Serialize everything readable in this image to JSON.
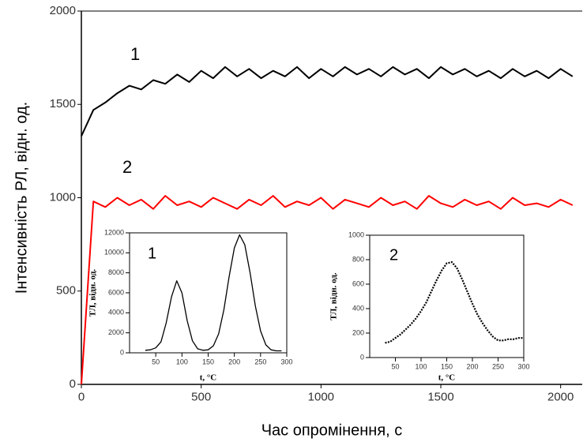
{
  "chart_data": [
    {
      "type": "line",
      "xlabel": "Час опромінення, с",
      "ylabel": "Інтенсивність РЛ, відн. од.",
      "xlim": [
        0,
        2090
      ],
      "ylim": [
        0,
        2000
      ],
      "xticks": [
        0,
        500,
        1000,
        1500,
        2000
      ],
      "yticks": [
        0,
        500,
        1000,
        1500,
        2000
      ],
      "x": [
        0,
        50,
        100,
        150,
        200,
        250,
        300,
        350,
        400,
        450,
        500,
        550,
        600,
        650,
        700,
        750,
        800,
        850,
        900,
        950,
        1000,
        1050,
        1100,
        1150,
        1200,
        1250,
        1300,
        1350,
        1400,
        1450,
        1500,
        1550,
        1600,
        1650,
        1700,
        1750,
        1800,
        1850,
        1900,
        1950,
        2000,
        2050
      ],
      "series": [
        {
          "name": "1",
          "color": "#000000",
          "values": [
            1330,
            1470,
            1510,
            1560,
            1600,
            1580,
            1630,
            1610,
            1660,
            1620,
            1680,
            1640,
            1700,
            1650,
            1690,
            1640,
            1680,
            1650,
            1700,
            1640,
            1690,
            1650,
            1700,
            1660,
            1690,
            1650,
            1700,
            1660,
            1690,
            1640,
            1700,
            1660,
            1690,
            1650,
            1680,
            1640,
            1690,
            1650,
            1680,
            1640,
            1690,
            1650
          ]
        },
        {
          "name": "2",
          "color": "#ff0000",
          "values": [
            0,
            980,
            950,
            1000,
            960,
            990,
            940,
            1010,
            960,
            980,
            950,
            1000,
            970,
            940,
            990,
            960,
            1010,
            950,
            980,
            960,
            1000,
            940,
            990,
            970,
            950,
            1000,
            960,
            980,
            940,
            1010,
            970,
            950,
            990,
            960,
            980,
            940,
            1000,
            960,
            970,
            950,
            990,
            960
          ]
        }
      ]
    },
    {
      "type": "line",
      "label": "1",
      "xlabel": "t, °C",
      "ylabel": "ТЛ, відн. од.",
      "xlim": [
        0,
        300
      ],
      "ylim": [
        0,
        12000
      ],
      "xticks": [
        50,
        100,
        150,
        200,
        250,
        300
      ],
      "yticks": [
        0,
        2000,
        4000,
        6000,
        8000,
        10000,
        12000
      ],
      "x": [
        30,
        40,
        50,
        60,
        70,
        80,
        90,
        100,
        110,
        120,
        130,
        140,
        150,
        160,
        170,
        180,
        190,
        200,
        210,
        220,
        230,
        240,
        250,
        260,
        270,
        280,
        290
      ],
      "series": [
        {
          "color": "#000000",
          "linestyle": "solid",
          "values": [
            250,
            300,
            500,
            1100,
            3000,
            5600,
            7200,
            6000,
            3200,
            1200,
            400,
            250,
            300,
            700,
            1900,
            4300,
            7600,
            10500,
            11800,
            10800,
            8000,
            4700,
            2200,
            800,
            300,
            200,
            200
          ]
        }
      ]
    },
    {
      "type": "line",
      "label": "2",
      "xlabel": "t, °C",
      "ylabel": "ТЛ, відн. од.",
      "xlim": [
        0,
        300
      ],
      "ylim": [
        0,
        1000
      ],
      "xticks": [
        50,
        100,
        150,
        200,
        250,
        300
      ],
      "yticks": [
        0,
        200,
        400,
        600,
        800,
        1000
      ],
      "x": [
        30,
        40,
        50,
        60,
        70,
        80,
        90,
        100,
        110,
        120,
        130,
        140,
        150,
        160,
        170,
        180,
        190,
        200,
        210,
        220,
        230,
        240,
        250,
        260,
        270,
        280,
        290,
        300
      ],
      "series": [
        {
          "color": "#000000",
          "linestyle": "dotted",
          "values": [
            120,
            130,
            160,
            190,
            230,
            270,
            320,
            380,
            450,
            540,
            630,
            710,
            770,
            780,
            730,
            640,
            540,
            440,
            350,
            280,
            220,
            170,
            140,
            140,
            150,
            150,
            160,
            160
          ]
        }
      ]
    }
  ]
}
